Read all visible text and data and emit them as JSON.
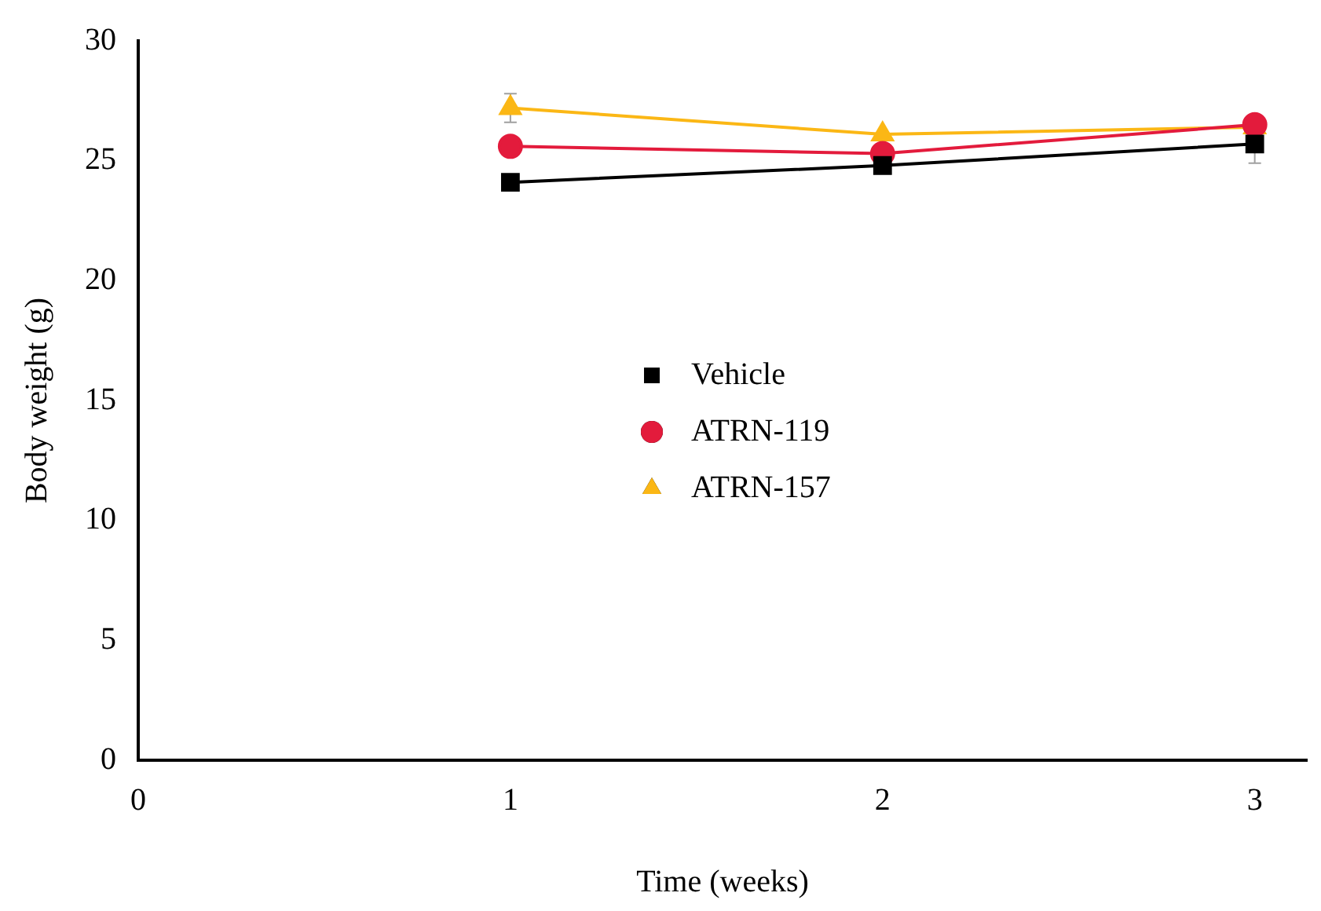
{
  "chart_data": {
    "type": "line",
    "xlabel": "Time (weeks)",
    "ylabel": "Body weight (g)",
    "x": [
      1,
      2,
      3
    ],
    "xlim": [
      0,
      3.14
    ],
    "xticks": [
      0,
      1,
      2,
      3
    ],
    "ylim": [
      0,
      30
    ],
    "yticks": [
      0,
      5,
      10,
      15,
      20,
      25,
      30
    ],
    "grid": false,
    "legend": "center",
    "line_style": "solid",
    "series": [
      {
        "name": "Vehicle",
        "color": "#000000",
        "marker": "square",
        "values": [
          24.1,
          24.8,
          25.7
        ],
        "errors": [
          null,
          null,
          0.8
        ]
      },
      {
        "name": "ATRN-119",
        "color": "#e31b3c",
        "marker": "circle",
        "values": [
          25.6,
          25.3,
          26.5
        ],
        "errors": [
          null,
          null,
          null
        ]
      },
      {
        "name": "ATRN-157",
        "color": "#fbb715",
        "marker": "triangle",
        "values": [
          27.2,
          26.1,
          26.4
        ],
        "errors": [
          0.6,
          null,
          null
        ]
      }
    ]
  }
}
